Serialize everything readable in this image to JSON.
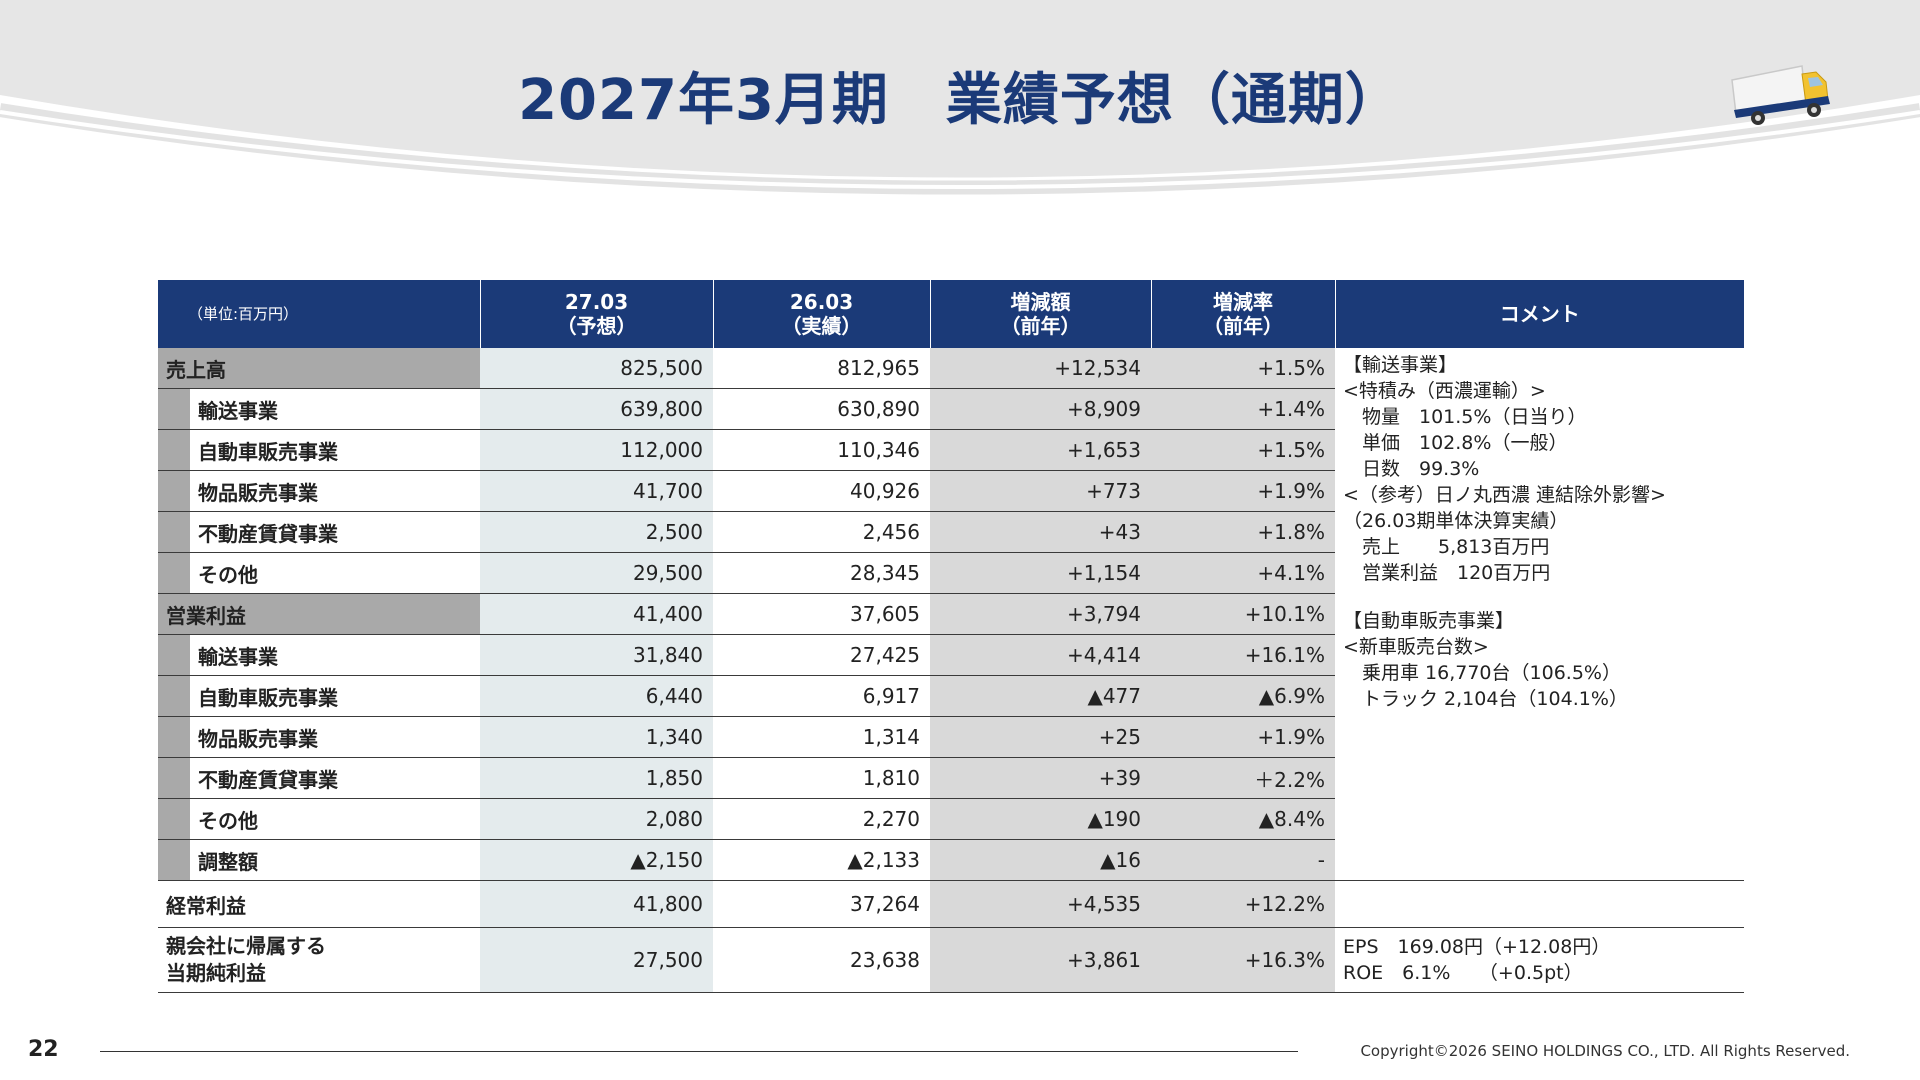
{
  "title": "2027年3月期　業績予想（通期）",
  "table": {
    "unit_label": "（単位:百万円）",
    "headers": [
      {
        "line1": "27.03",
        "line2": "（予想）"
      },
      {
        "line1": "26.03",
        "line2": "（実績）"
      },
      {
        "line1": "増減額",
        "line2": "（前年）"
      },
      {
        "line1": "増減率",
        "line2": "（前年）"
      }
    ],
    "comment_header": "コメント",
    "rows": [
      {
        "label": "売上高",
        "values": [
          "825,500",
          "812,965",
          "+12,534",
          "+1.5%"
        ]
      },
      {
        "label": "輸送事業",
        "values": [
          "639,800",
          "630,890",
          "+8,909",
          "+1.4%"
        ]
      },
      {
        "label": "自動車販売事業",
        "values": [
          "112,000",
          "110,346",
          "+1,653",
          "+1.5%"
        ]
      },
      {
        "label": "物品販売事業",
        "values": [
          "41,700",
          "40,926",
          "+773",
          "+1.9%"
        ]
      },
      {
        "label": "不動産賃貸事業",
        "values": [
          "2,500",
          "2,456",
          "+43",
          "+1.8%"
        ]
      },
      {
        "label": "その他",
        "values": [
          "29,500",
          "28,345",
          "+1,154",
          "+4.1%"
        ]
      },
      {
        "label": "営業利益",
        "values": [
          "41,400",
          "37,605",
          "+3,794",
          "+10.1%"
        ]
      },
      {
        "label": "輸送事業",
        "values": [
          "31,840",
          "27,425",
          "+4,414",
          "+16.1%"
        ]
      },
      {
        "label": "自動車販売事業",
        "values": [
          "6,440",
          "6,917",
          "▲477",
          "▲6.9%"
        ]
      },
      {
        "label": "物品販売事業",
        "values": [
          "1,340",
          "1,314",
          "+25",
          "+1.9%"
        ]
      },
      {
        "label": "不動産賃貸事業",
        "values": [
          "1,850",
          "1,810",
          "+39",
          "＋2.2%"
        ]
      },
      {
        "label": "その他",
        "values": [
          "2,080",
          "2,270",
          "▲190",
          "▲8.4%"
        ]
      },
      {
        "label": "調整額",
        "values": [
          "▲2,150",
          "▲2,133",
          "▲16",
          "-"
        ]
      },
      {
        "label": "経常利益",
        "values": [
          "41,800",
          "37,264",
          "+4,535",
          "+12.2%"
        ]
      },
      {
        "label_line1": "親会社に帰属する",
        "label_line2": "当期純利益",
        "values": [
          "27,500",
          "23,638",
          "+3,861",
          "+16.3%"
        ]
      }
    ],
    "comments": {
      "block1": [
        "【輸送事業】",
        "<特積み（西濃運輸）>",
        "　物量　101.5%（日当り）",
        "　単価　102.8%（一般）",
        "　日数　99.3%",
        "<（参考）日ノ丸西濃 連結除外影響>",
        "（26.03期単体決算実績）",
        "　売上　　5,813百万円",
        "　営業利益　120百万円"
      ],
      "block2": [
        "【自動車販売事業】",
        "<新車販売台数>",
        "　乗用車 16,770台（106.5%）",
        "　トラック 2,104台（104.1%）"
      ],
      "net_income": [
        "EPS　169.08円（+12.08円）",
        "ROE　6.1%　　（+0.5pt）"
      ]
    }
  },
  "footer": {
    "page_number": "22",
    "copyright": "Copyright©2026 SEINO HOLDINGS CO., LTD.  All Rights Reserved."
  },
  "colors": {
    "navy": "#1b3a78",
    "header_bg": "#e6e6e6",
    "label_gray": "#a9a9a9",
    "col1_tint": "#e4ebed",
    "diff_gray": "#d9d9d9"
  }
}
